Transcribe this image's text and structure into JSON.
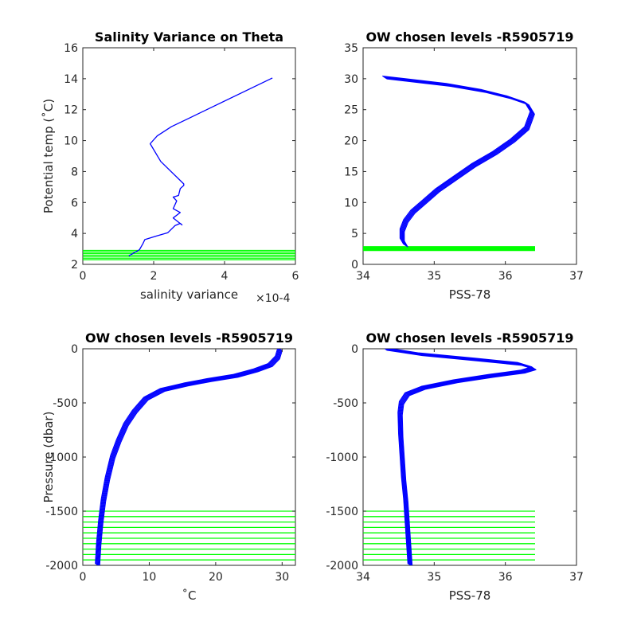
{
  "colors": {
    "profile": "#0000ff",
    "levels": "#00ff00",
    "axes": "#262626",
    "background": "#ffffff"
  },
  "chart_data": [
    {
      "type": "line",
      "title": "Salinity Variance on Theta",
      "xlabel": "salinity variance",
      "xexponent": "×10-4",
      "ylabel": "Potential temp (˚C)",
      "xlim": [
        0,
        6
      ],
      "ylim": [
        2,
        16
      ],
      "xticks": [
        "0",
        "2",
        "4",
        "6"
      ],
      "yticks": [
        "2",
        "4",
        "6",
        "8",
        "10",
        "12",
        "14",
        "16"
      ],
      "series": [
        {
          "x": [
            1.3,
            1.6,
            1.7,
            1.75,
            2.1,
            2.4,
            2.6,
            2.75,
            2.8,
            2.55,
            2.75,
            2.55,
            2.65,
            2.55,
            2.7,
            2.75,
            2.85,
            2.85,
            2.2,
            1.9,
            2.1,
            2.5,
            3.0,
            5.35
          ],
          "y": [
            2.55,
            2.95,
            3.35,
            3.6,
            3.85,
            4.05,
            4.5,
            4.65,
            4.55,
            5.0,
            5.35,
            5.6,
            6.1,
            6.35,
            6.45,
            6.9,
            7.1,
            7.2,
            8.65,
            9.8,
            10.3,
            10.9,
            11.45,
            14.05
          ]
        }
      ],
      "levels": [
        2.3,
        2.4,
        2.5,
        2.6,
        2.7,
        2.8,
        2.9
      ]
    },
    {
      "type": "line",
      "title": "OW chosen levels -R5905719",
      "xlabel": "PSS-78",
      "ylabel": "",
      "xlim": [
        34,
        37
      ],
      "ylim": [
        0,
        35
      ],
      "xticks": [
        "34",
        "35",
        "36",
        "37"
      ],
      "yticks": [
        "0",
        "5",
        "10",
        "15",
        "20",
        "25",
        "30",
        "35"
      ],
      "series": [
        {
          "x": [
            34.6,
            34.55,
            34.55,
            34.6,
            34.7,
            34.85,
            35.05,
            35.3,
            35.55,
            35.85,
            36.1,
            36.3,
            36.38,
            36.3,
            36.05,
            35.7,
            35.2,
            34.6,
            34.3
          ],
          "y": [
            3.0,
            4.0,
            5.5,
            7.0,
            8.5,
            10.0,
            12.0,
            14.0,
            16.0,
            18.0,
            20.0,
            22.0,
            24.5,
            26.0,
            27.0,
            28.0,
            29.0,
            29.8,
            30.2
          ]
        }
      ],
      "levels": [
        2.3,
        2.4,
        2.5,
        2.6,
        2.7,
        2.8
      ]
    },
    {
      "type": "line",
      "title": "OW chosen levels -R5905719",
      "xlabel": "˚C",
      "ylabel": "Pressure (dbar)",
      "xlim": [
        0,
        32
      ],
      "ylim": [
        -2000,
        0
      ],
      "xticks": [
        "0",
        "10",
        "20",
        "30"
      ],
      "yticks": [
        "-2000",
        "-1500",
        "-1000",
        "-500",
        "0"
      ],
      "series": [
        {
          "x": [
            2.2,
            2.4,
            2.7,
            3.1,
            3.7,
            4.5,
            5.4,
            6.5,
            7.8,
            9.5,
            12.0,
            15.5,
            19.0,
            23.0,
            26.0,
            28.2,
            29.3,
            29.7
          ],
          "y": [
            -2000,
            -1800,
            -1600,
            -1400,
            -1200,
            -1000,
            -850,
            -700,
            -580,
            -460,
            -380,
            -330,
            -290,
            -250,
            -200,
            -150,
            -80,
            0
          ]
        }
      ],
      "levels": [
        -1500,
        -1550,
        -1600,
        -1650,
        -1700,
        -1750,
        -1800,
        -1850,
        -1900,
        -1950
      ]
    },
    {
      "type": "line",
      "title": "OW chosen levels -R5905719",
      "xlabel": "PSS-78",
      "ylabel": "",
      "xlim": [
        34,
        37
      ],
      "ylim": [
        -2000,
        0
      ],
      "xticks": [
        "34",
        "35",
        "36",
        "37"
      ],
      "yticks": [
        "-2000",
        "-1500",
        "-1000",
        "-500",
        "0"
      ],
      "series": [
        {
          "x": [
            34.66,
            34.64,
            34.62,
            34.6,
            34.57,
            34.55,
            34.53,
            34.52,
            34.54,
            34.62,
            34.85,
            35.3,
            35.8,
            36.25,
            36.4,
            36.2,
            35.6,
            34.8,
            34.3
          ],
          "y": [
            -2000,
            -1800,
            -1600,
            -1400,
            -1200,
            -1000,
            -800,
            -600,
            -500,
            -420,
            -360,
            -300,
            -250,
            -210,
            -180,
            -140,
            -100,
            -50,
            0
          ]
        }
      ],
      "levels": [
        -1500,
        -1550,
        -1600,
        -1650,
        -1700,
        -1750,
        -1800,
        -1850,
        -1900,
        -1950
      ]
    }
  ]
}
